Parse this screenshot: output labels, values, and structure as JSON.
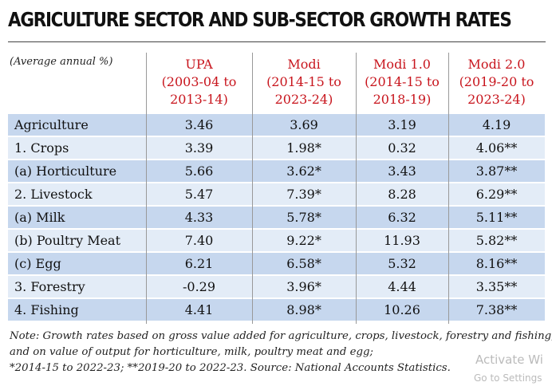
{
  "header": {
    "title": "AGRICULTURE SECTOR AND SUB-SECTOR GROWTH RATES",
    "unit": "(Average annual %)"
  },
  "table": {
    "columns": [
      {
        "lines": [
          "UPA",
          "(2003-04 to",
          "2013-14)"
        ]
      },
      {
        "lines": [
          "Modi",
          "(2014-15 to",
          "2023-24)"
        ]
      },
      {
        "lines": [
          "Modi 1.0",
          "(2014-15 to",
          "2018-19)"
        ]
      },
      {
        "lines": [
          "Modi 2.0",
          "(2019-20 to",
          "2023-24)"
        ]
      }
    ],
    "rows": [
      [
        "Agriculture",
        "3.46",
        "3.69",
        "3.19",
        "4.19"
      ],
      [
        "1. Crops",
        "3.39",
        "1.98*",
        "0.32",
        "4.06**"
      ],
      [
        "(a) Horticulture",
        "5.66",
        "3.62*",
        "3.43",
        "3.87**"
      ],
      [
        "2. Livestock",
        "5.47",
        "7.39*",
        "8.28",
        "6.29**"
      ],
      [
        "(a) Milk",
        "4.33",
        "5.78*",
        "6.32",
        "5.11**"
      ],
      [
        "(b) Poultry Meat",
        "7.40",
        "9.22*",
        "11.93",
        "5.82**"
      ],
      [
        "(c) Egg",
        "6.21",
        "6.58*",
        "5.32",
        "8.16**"
      ],
      [
        "3. Forestry",
        "-0.29",
        "3.96*",
        "4.44",
        "3.35**"
      ],
      [
        "4. Fishing",
        "4.41",
        "8.98*",
        "10.26",
        "7.38**"
      ]
    ]
  },
  "notes": [
    "Note: Growth rates based on gross value added for agriculture, crops, livestock, forestry and fishing,",
    "and on value of output for horticulture, milk, poultry meat and egg;",
    "*2014-15 to 2022-23; **2019-20 to 2022-23. Source: National Accounts Statistics."
  ],
  "watermark": {
    "line1": "Activate Wi",
    "line2": "Go to Settings"
  }
}
